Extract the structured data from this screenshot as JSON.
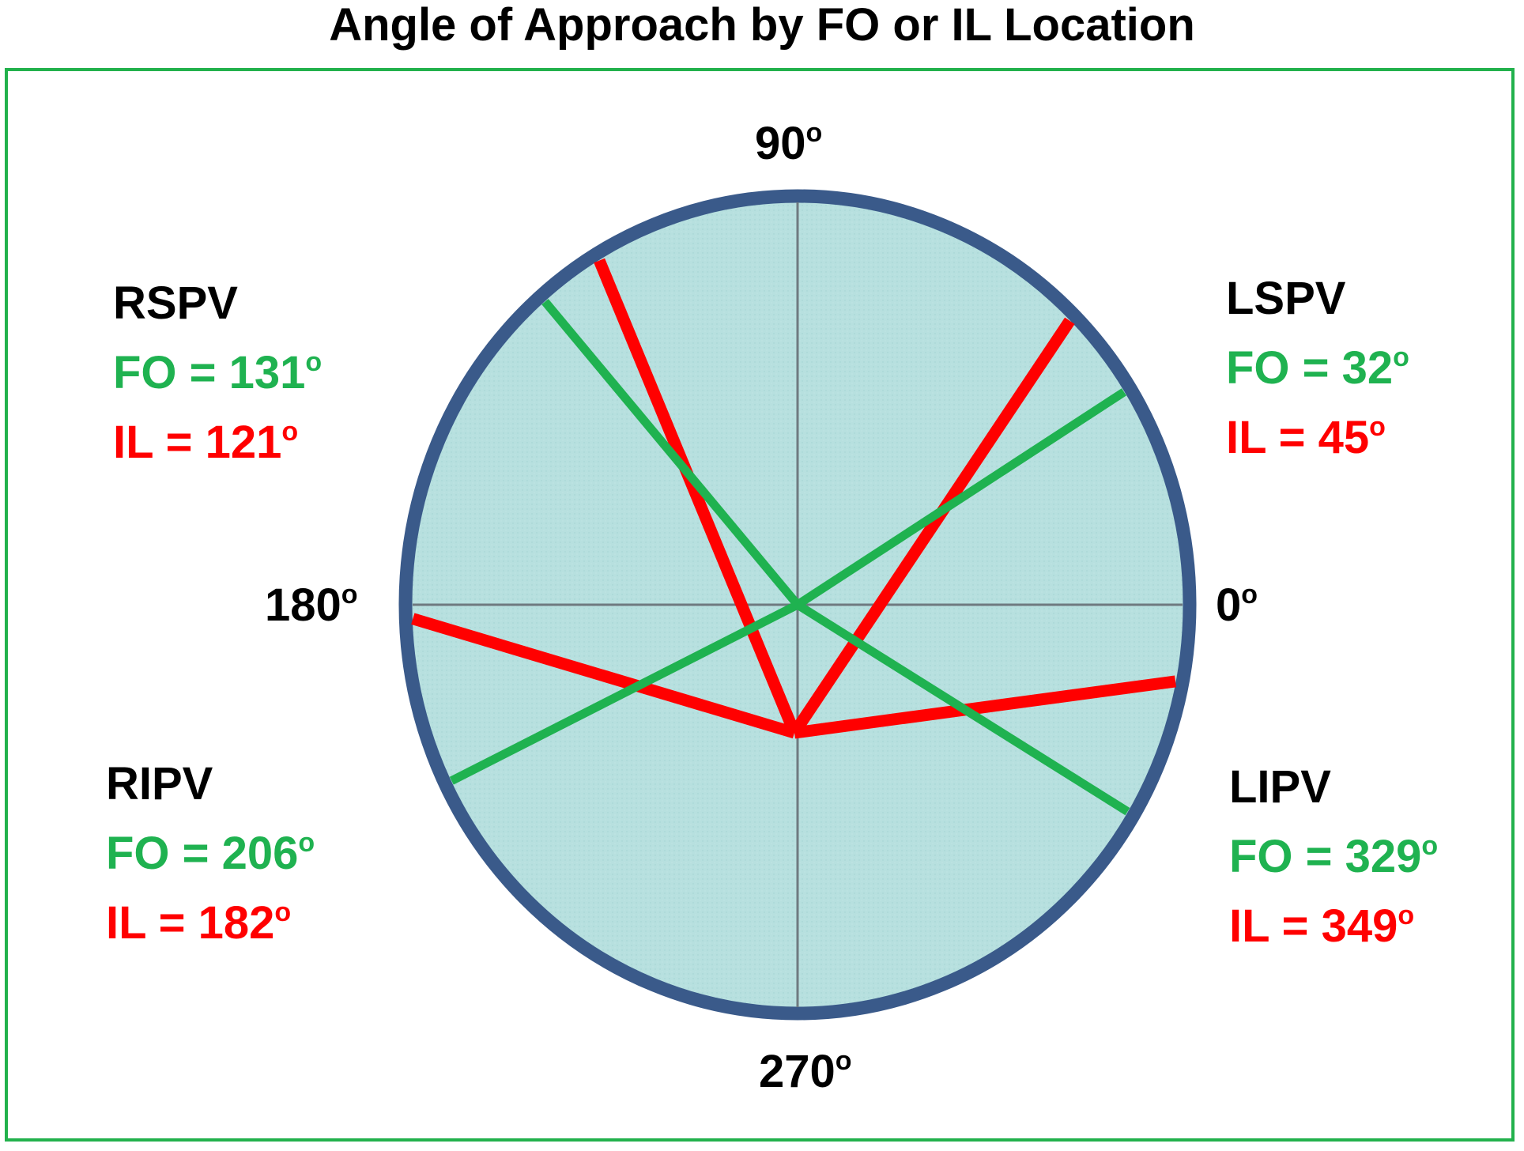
{
  "title": "Angle of Approach by FO or IL Location",
  "axis_labels": {
    "deg90": "90",
    "deg0": "0",
    "deg180": "180",
    "deg270": "270",
    "degree_mark": "o"
  },
  "colors": {
    "fo": "#1fb250",
    "il": "#ff0000",
    "ring": "#3a5a8a",
    "disc": "#b7e0df",
    "frame": "#22b14c"
  },
  "veins": {
    "rspv": {
      "name": "RSPV",
      "fo_text": "FO = 131",
      "il_text": "IL = 121",
      "fo_deg": 131,
      "il_deg": 121
    },
    "lspv": {
      "name": "LSPV",
      "fo_text": "FO = 32",
      "il_text": "IL = 45",
      "fo_deg": 32,
      "il_deg": 45
    },
    "ripv": {
      "name": "RIPV",
      "fo_text": "FO = 206",
      "il_text": "IL = 182",
      "fo_deg": 206,
      "il_deg": 182
    },
    "lipv": {
      "name": "LIPV",
      "fo_text": "FO = 329",
      "il_text": "IL = 349",
      "fo_deg": 329,
      "il_deg": 349
    }
  }
}
